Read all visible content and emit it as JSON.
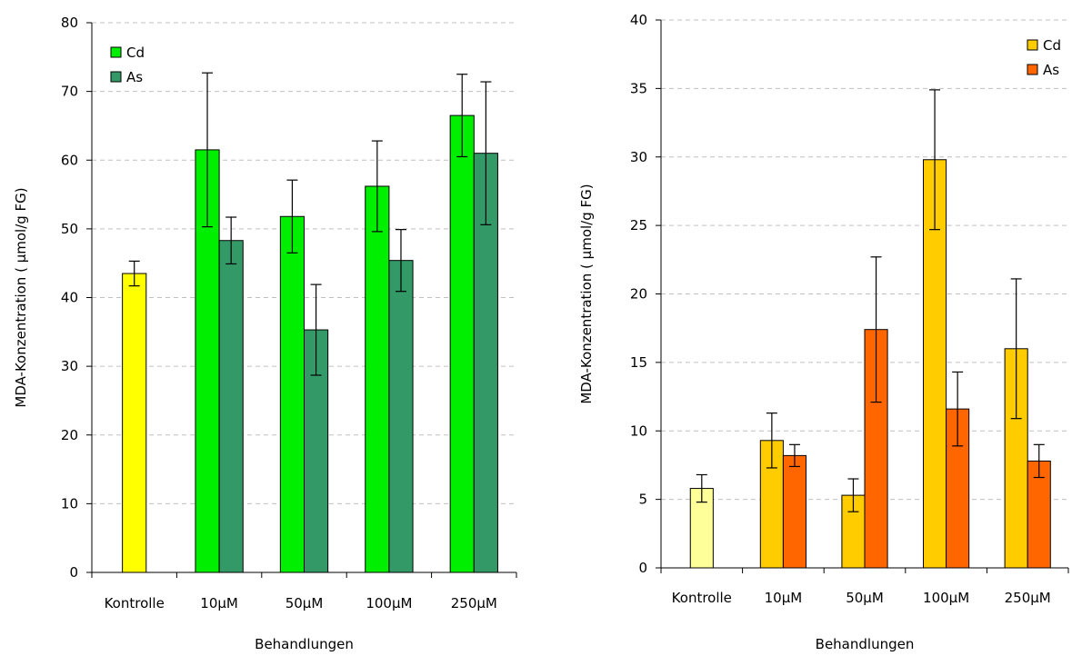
{
  "chart_data": [
    {
      "type": "bar",
      "categories": [
        "Kontrolle",
        "10µM",
        "50µM",
        "100µM",
        "250µM"
      ],
      "xlabel": "Behandlungen",
      "ylabel": "MDA-Konzentration ( µmol/g FG)",
      "ylim": [
        0,
        80
      ],
      "yticks": [
        "0",
        "10",
        "20",
        "30",
        "40",
        "50",
        "60",
        "70",
        "80"
      ],
      "grid": "horizontal dashed",
      "legend_position": "top-left",
      "control": {
        "value": 43.5,
        "error": 1.8,
        "color": "#ffff00"
      },
      "series": [
        {
          "name": "Cd",
          "color": "#00ee00",
          "values": [
            null,
            61.5,
            51.8,
            56.2,
            66.5
          ],
          "errors": [
            null,
            11.2,
            5.3,
            6.6,
            6.0
          ]
        },
        {
          "name": "As",
          "color": "#339966",
          "values": [
            null,
            48.3,
            35.3,
            45.4,
            61.0
          ],
          "errors": [
            null,
            3.4,
            6.6,
            4.5,
            10.4
          ]
        }
      ]
    },
    {
      "type": "bar",
      "categories": [
        "Kontrolle",
        "10µM",
        "50µM",
        "100µM",
        "250µM"
      ],
      "xlabel": "Behandlungen",
      "ylabel": "MDA-Konzentration ( µmol/g FG)",
      "ylim": [
        0,
        40
      ],
      "yticks": [
        "0",
        "5",
        "10",
        "15",
        "20",
        "25",
        "30",
        "35",
        "40"
      ],
      "grid": "horizontal dashed",
      "legend_position": "top-right",
      "control": {
        "value": 5.8,
        "error": 1.0,
        "color": "#ffff99"
      },
      "series": [
        {
          "name": "Cd",
          "color": "#ffcc00",
          "values": [
            null,
            9.3,
            5.3,
            29.8,
            16.0
          ],
          "errors": [
            null,
            2.0,
            1.2,
            5.1,
            5.1
          ]
        },
        {
          "name": "As",
          "color": "#ff6600",
          "values": [
            null,
            8.2,
            17.4,
            11.6,
            7.8
          ],
          "errors": [
            null,
            0.8,
            5.3,
            2.7,
            1.2
          ]
        }
      ]
    }
  ]
}
